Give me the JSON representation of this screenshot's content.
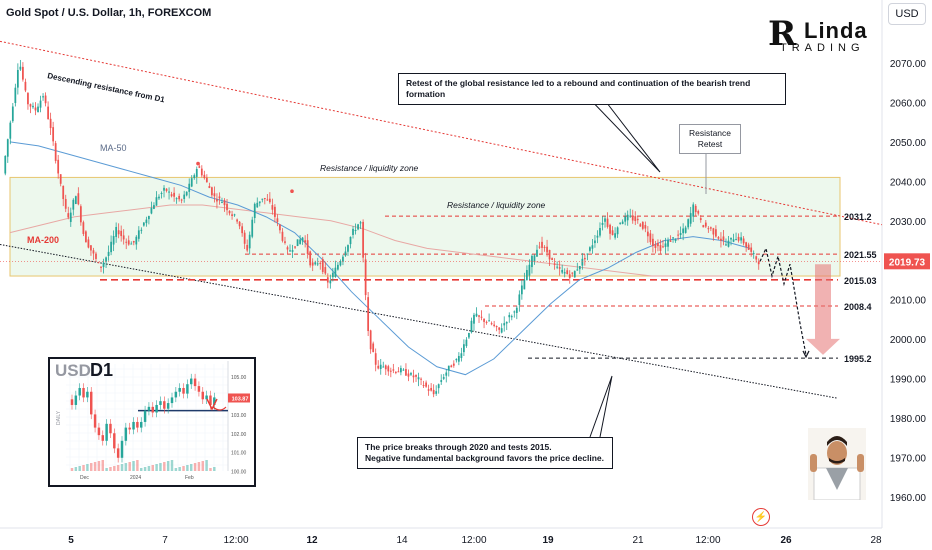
{
  "header": {
    "symbol_title": "Gold Spot / U.S. Dollar, 1h, FOREXCOM",
    "currency_button": "USD"
  },
  "logo": {
    "big_letter": "R",
    "line1": "Linda",
    "line2": "TRADING"
  },
  "annotations": {
    "descending_resistance": "Descending resistance from D1",
    "ma50": "MA-50",
    "ma200": "MA-200",
    "zone_upper": "Resistance / liquidity zone",
    "zone_inner": "Resistance / liquidity zone",
    "resistance_retest": "Resistance Retest",
    "callout_top": "Retest of the global resistance led to a rebound and continuation of the bearish trend formation",
    "callout_bottom_line1": "The price breaks through 2020 and tests 2015.",
    "callout_bottom_line2": "Negative fundamental background favors the price decline."
  },
  "colors": {
    "up": "#26a69a",
    "down": "#ef5350",
    "resistance_line": "#e53935",
    "level_line": "#e53935",
    "ma50": "#5b9bd5",
    "ma200": "#e8a8a4",
    "zone_fill": "#dff3df",
    "zone_border": "#e8c66e",
    "projection": "#e57373",
    "price_badge": "#ef5350"
  },
  "chart_data": {
    "type": "candlestick",
    "title": "Gold Spot / U.S. Dollar, 1h, FOREXCOM",
    "ylim": [
      1955,
      2088
    ],
    "y_ticks": [
      1960,
      1970,
      1980,
      1990,
      2000,
      2010,
      2020,
      2030,
      2040,
      2050,
      2060,
      2070
    ],
    "y_tick_labels": [
      "1960.00",
      "1970.00",
      "1980.00",
      "1990.00",
      "2000.00",
      "2010.00",
      "2020.00",
      "2030.00",
      "2040.00",
      "2050.00",
      "2060.00",
      "2070.00"
    ],
    "x_tick_labels": [
      "5",
      "7",
      "12:00",
      "12",
      "14",
      "12:00",
      "19",
      "21",
      "12:00",
      "26",
      "28"
    ],
    "current_price": 2019.73,
    "current_price_label": "2019.73",
    "levels": [
      {
        "value": 2031.2,
        "label": "2031.2",
        "style": "dashed"
      },
      {
        "value": 2021.55,
        "label": "2021.55",
        "style": "dashed"
      },
      {
        "value": 2015.03,
        "label": "2015.03",
        "style": "dashed-bold"
      },
      {
        "value": 2008.4,
        "label": "2008.4",
        "style": "dashed"
      },
      {
        "value": 1995.2,
        "label": "1995.2",
        "style": "dashed-black"
      }
    ],
    "zone": {
      "top": 2041,
      "bottom": 2016
    },
    "descending_resistance": [
      2075.5,
      2029
    ],
    "support_line": [
      2024,
      1985
    ],
    "price_path": [
      2042,
      2056,
      2071,
      2060,
      2058,
      2062,
      2052,
      2040,
      2030,
      2037,
      2026,
      2022,
      2018,
      2022,
      2028,
      2025,
      2024,
      2028,
      2032,
      2036,
      2038,
      2036,
      2035,
      2039,
      2044,
      2040,
      2036,
      2035,
      2032,
      2030,
      2022,
      2034,
      2036,
      2034,
      2028,
      2022,
      2024,
      2026,
      2018,
      2020,
      2014,
      2018,
      2022,
      2027,
      2030,
      2000,
      1993,
      1993,
      1992,
      1992,
      1991,
      1990,
      1988,
      1986,
      1990,
      1993,
      1995,
      2000,
      2006,
      2005,
      2004,
      2002,
      2005,
      2007,
      2014,
      2020,
      2024,
      2022,
      2018,
      2017,
      2016,
      2019,
      2022,
      2026,
      2031,
      2026,
      2030,
      2031,
      2030,
      2028,
      2024,
      2023,
      2025,
      2026,
      2028,
      2034,
      2029,
      2028,
      2026,
      2024,
      2026,
      2025,
      2022,
      2019.7
    ],
    "ma50_path": [
      2050,
      2049,
      2047,
      2045,
      2043,
      2041,
      2039,
      2036,
      2034,
      2031,
      2027,
      2020,
      2012,
      2005,
      1998,
      1993,
      1991,
      1995,
      2002,
      2009,
      2015,
      2018,
      2022,
      2025,
      2026,
      2025,
      2023
    ],
    "ma200_path": [
      2027,
      2029,
      2031,
      2032,
      2033,
      2034,
      2034,
      2033,
      2032,
      2031,
      2030,
      2028,
      2025,
      2023,
      2022,
      2021,
      2020,
      2019,
      2018,
      2017,
      2016,
      2016,
      2016,
      2016,
      2016
    ],
    "projection_path": [
      2019.7,
      2023,
      2016,
      2021,
      2014,
      2019,
      2010,
      2004,
      1996
    ],
    "inset": {
      "label_currency": "USD",
      "label_timeframe": "D1",
      "axis_label": "DAILY",
      "y_ticks": [
        "105.00",
        "104.00",
        "103.00",
        "102.00",
        "101.00",
        "100.00"
      ],
      "x_ticks": [
        "Dec",
        "2024",
        "Feb"
      ],
      "price_badge": "103.87",
      "level": 103.2,
      "ylim": [
        100,
        105.3
      ],
      "path": [
        103.8,
        103.5,
        104.0,
        104.4,
        103.9,
        104.2,
        103.0,
        102.3,
        101.9,
        101.6,
        102.5,
        102.0,
        101.2,
        100.7,
        101.6,
        102.3,
        102.2,
        102.6,
        102.3,
        102.6,
        103.2,
        103.4,
        103.1,
        103.5,
        103.7,
        103.3,
        103.6,
        103.9,
        104.2,
        104.4,
        104.1,
        104.6,
        104.9,
        104.5,
        104.2,
        103.8,
        104.0,
        103.5,
        103.9
      ]
    }
  }
}
